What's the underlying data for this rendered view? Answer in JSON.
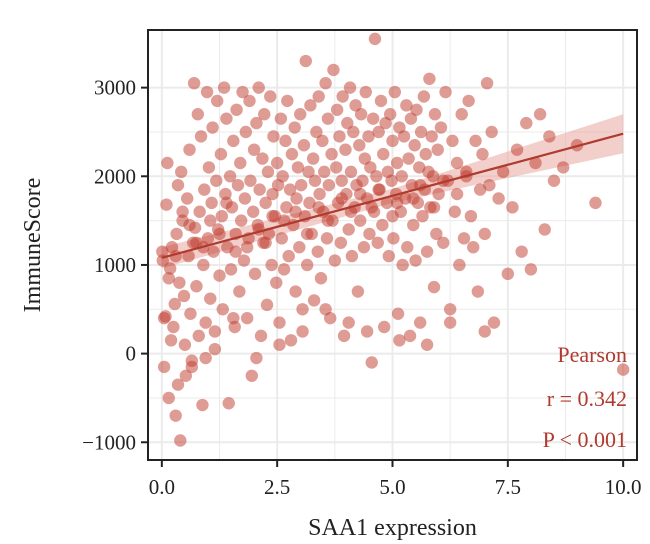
{
  "chart_data": {
    "type": "scatter",
    "title": "",
    "xlabel": "SAA1 expression",
    "ylabel": "ImmuneScore",
    "xlim": [
      -0.3,
      10.3
    ],
    "ylim": [
      -1200,
      3650
    ],
    "x_ticks": [
      0.0,
      2.5,
      5.0,
      7.5,
      10.0
    ],
    "x_tick_labels": [
      "0.0",
      "2.5",
      "5.0",
      "7.5",
      "10.0"
    ],
    "y_ticks": [
      -1000,
      0,
      1000,
      2000,
      3000
    ],
    "y_tick_labels": [
      "−1000",
      "0",
      "1000",
      "2000",
      "3000"
    ],
    "grid": true,
    "colors": {
      "point": "#c0392b",
      "line": "#b03a2e",
      "band": "#e8a7a0",
      "annotation": "#b03a2e",
      "grid": "#ebebeb"
    },
    "regression": {
      "x": [
        0.0,
        10.0
      ],
      "y": [
        1080,
        2480
      ],
      "se_band": [
        [
          0.0,
          960,
          1200
        ],
        [
          5.0,
          1700,
          1860
        ],
        [
          10.0,
          2260,
          2700
        ]
      ]
    },
    "annotations": {
      "method": "Pearson",
      "r": "r = 0.342",
      "p": "P < 0.001"
    },
    "points": [
      [
        0.01,
        1150
      ],
      [
        0.02,
        1050
      ],
      [
        0.05,
        -150
      ],
      [
        0.08,
        420
      ],
      [
        0.1,
        1680
      ],
      [
        0.12,
        2150
      ],
      [
        0.15,
        -500
      ],
      [
        0.18,
        960
      ],
      [
        0.2,
        150
      ],
      [
        0.22,
        1200
      ],
      [
        0.25,
        300
      ],
      [
        0.28,
        560
      ],
      [
        0.3,
        -700
      ],
      [
        0.32,
        1350
      ],
      [
        0.35,
        1900
      ],
      [
        0.38,
        800
      ],
      [
        0.4,
        -980
      ],
      [
        0.42,
        2050
      ],
      [
        0.45,
        1500
      ],
      [
        0.48,
        650
      ],
      [
        0.5,
        100
      ],
      [
        0.52,
        -250
      ],
      [
        0.55,
        1750
      ],
      [
        0.58,
        1100
      ],
      [
        0.6,
        2300
      ],
      [
        0.62,
        450
      ],
      [
        0.65,
        -80
      ],
      [
        0.68,
        1250
      ],
      [
        0.7,
        3050
      ],
      [
        0.72,
        1420
      ],
      [
        0.75,
        760
      ],
      [
        0.78,
        2700
      ],
      [
        0.8,
        200
      ],
      [
        0.82,
        1600
      ],
      [
        0.85,
        2450
      ],
      [
        0.88,
        -580
      ],
      [
        0.9,
        1000
      ],
      [
        0.92,
        1850
      ],
      [
        0.95,
        350
      ],
      [
        0.98,
        2950
      ],
      [
        1.0,
        1300
      ],
      [
        1.02,
        2100
      ],
      [
        1.05,
        620
      ],
      [
        1.08,
        1700
      ],
      [
        1.1,
        2550
      ],
      [
        1.12,
        1150
      ],
      [
        1.15,
        50
      ],
      [
        1.18,
        1950
      ],
      [
        1.2,
        2850
      ],
      [
        1.22,
        1400
      ],
      [
        1.25,
        880
      ],
      [
        1.28,
        2250
      ],
      [
        1.3,
        1550
      ],
      [
        1.32,
        500
      ],
      [
        1.35,
        3000
      ],
      [
        1.38,
        1800
      ],
      [
        1.4,
        2650
      ],
      [
        1.42,
        1200
      ],
      [
        1.45,
        -560
      ],
      [
        1.48,
        2000
      ],
      [
        1.5,
        950
      ],
      [
        1.52,
        1650
      ],
      [
        1.55,
        2400
      ],
      [
        1.58,
        300
      ],
      [
        1.6,
        1350
      ],
      [
        1.62,
        2750
      ],
      [
        1.65,
        1900
      ],
      [
        1.68,
        700
      ],
      [
        1.7,
        2150
      ],
      [
        1.72,
        1500
      ],
      [
        1.75,
        2950
      ],
      [
        1.78,
        1050
      ],
      [
        1.8,
        1750
      ],
      [
        1.82,
        2500
      ],
      [
        1.85,
        400
      ],
      [
        1.88,
        1300
      ],
      [
        1.9,
        2850
      ],
      [
        1.92,
        1950
      ],
      [
        1.95,
        -250
      ],
      [
        1.98,
        1600
      ],
      [
        2.0,
        2300
      ],
      [
        2.02,
        900
      ],
      [
        2.05,
        2600
      ],
      [
        2.08,
        1450
      ],
      [
        2.1,
        3000
      ],
      [
        2.12,
        1850
      ],
      [
        2.15,
        200
      ],
      [
        2.18,
        2200
      ],
      [
        2.2,
        1250
      ],
      [
        2.22,
        2700
      ],
      [
        2.25,
        1700
      ],
      [
        2.28,
        550
      ],
      [
        2.3,
        2050
      ],
      [
        2.32,
        1350
      ],
      [
        2.35,
        2900
      ],
      [
        2.38,
        1000
      ],
      [
        2.4,
        1800
      ],
      [
        2.42,
        2450
      ],
      [
        2.45,
        1550
      ],
      [
        2.48,
        800
      ],
      [
        2.5,
        2150
      ],
      [
        2.52,
        1900
      ],
      [
        2.55,
        350
      ],
      [
        2.58,
        2650
      ],
      [
        2.6,
        1300
      ],
      [
        2.62,
        2000
      ],
      [
        2.65,
        950
      ],
      [
        2.68,
        2400
      ],
      [
        2.7,
        1650
      ],
      [
        2.72,
        2850
      ],
      [
        2.75,
        1100
      ],
      [
        2.78,
        1850
      ],
      [
        2.8,
        150
      ],
      [
        2.82,
        2250
      ],
      [
        2.85,
        1450
      ],
      [
        2.88,
        2550
      ],
      [
        2.9,
        700
      ],
      [
        2.92,
        1750
      ],
      [
        2.95,
        2100
      ],
      [
        2.98,
        1200
      ],
      [
        3.0,
        2700
      ],
      [
        3.02,
        1900
      ],
      [
        3.05,
        500
      ],
      [
        3.08,
        2350
      ],
      [
        3.1,
        1550
      ],
      [
        3.12,
        3300
      ],
      [
        3.15,
        1000
      ],
      [
        3.18,
        2050
      ],
      [
        3.2,
        1700
      ],
      [
        3.22,
        2800
      ],
      [
        3.25,
        1350
      ],
      [
        3.28,
        2200
      ],
      [
        3.3,
        600
      ],
      [
        3.32,
        1950
      ],
      [
        3.35,
        2500
      ],
      [
        3.38,
        1150
      ],
      [
        3.4,
        2900
      ],
      [
        3.42,
        1800
      ],
      [
        3.45,
        850
      ],
      [
        3.48,
        2400
      ],
      [
        3.5,
        1600
      ],
      [
        3.52,
        2050
      ],
      [
        3.55,
        3050
      ],
      [
        3.58,
        1300
      ],
      [
        3.6,
        2650
      ],
      [
        3.62,
        1900
      ],
      [
        3.65,
        400
      ],
      [
        3.68,
        2250
      ],
      [
        3.7,
        1500
      ],
      [
        3.72,
        3200
      ],
      [
        3.75,
        1050
      ],
      [
        3.78,
        2100
      ],
      [
        3.8,
        2750
      ],
      [
        3.82,
        1700
      ],
      [
        3.85,
        2450
      ],
      [
        3.88,
        1250
      ],
      [
        3.9,
        1950
      ],
      [
        3.92,
        2900
      ],
      [
        3.95,
        200
      ],
      [
        3.98,
        2300
      ],
      [
        4.0,
        1800
      ],
      [
        4.02,
        2600
      ],
      [
        4.05,
        1400
      ],
      [
        4.08,
        3000
      ],
      [
        4.1,
        2050
      ],
      [
        4.12,
        1100
      ],
      [
        4.15,
        2500
      ],
      [
        4.18,
        1650
      ],
      [
        4.2,
        2800
      ],
      [
        4.22,
        1900
      ],
      [
        4.25,
        700
      ],
      [
        4.28,
        2350
      ],
      [
        4.3,
        1500
      ],
      [
        4.32,
        2700
      ],
      [
        4.35,
        1950
      ],
      [
        4.38,
        1200
      ],
      [
        4.4,
        2200
      ],
      [
        4.42,
        2950
      ],
      [
        4.45,
        1750
      ],
      [
        4.48,
        2450
      ],
      [
        4.5,
        1350
      ],
      [
        4.52,
        2100
      ],
      [
        4.55,
        -100
      ],
      [
        4.58,
        2650
      ],
      [
        4.6,
        1600
      ],
      [
        4.62,
        3550
      ],
      [
        4.65,
        2000
      ],
      [
        4.68,
        1250
      ],
      [
        4.7,
        2500
      ],
      [
        4.72,
        1850
      ],
      [
        4.75,
        2850
      ],
      [
        4.78,
        1450
      ],
      [
        4.8,
        2250
      ],
      [
        4.82,
        300
      ],
      [
        4.85,
        2600
      ],
      [
        4.88,
        1700
      ],
      [
        4.9,
        2050
      ],
      [
        4.92,
        1100
      ],
      [
        4.95,
        2700
      ],
      [
        4.98,
        1950
      ],
      [
        5.0,
        2400
      ],
      [
        5.02,
        1300
      ],
      [
        5.05,
        2950
      ],
      [
        5.08,
        1800
      ],
      [
        5.1,
        2150
      ],
      [
        5.12,
        450
      ],
      [
        5.15,
        2550
      ],
      [
        5.18,
        1600
      ],
      [
        5.2,
        2000
      ],
      [
        5.22,
        1000
      ],
      [
        5.25,
        2450
      ],
      [
        5.28,
        1750
      ],
      [
        5.3,
        2800
      ],
      [
        5.32,
        1200
      ],
      [
        5.35,
        2200
      ],
      [
        5.38,
        200
      ],
      [
        5.4,
        2650
      ],
      [
        5.42,
        1900
      ],
      [
        5.45,
        1450
      ],
      [
        5.48,
        2350
      ],
      [
        5.5,
        1050
      ],
      [
        5.52,
        2750
      ],
      [
        5.55,
        1700
      ],
      [
        5.58,
        2100
      ],
      [
        5.6,
        350
      ],
      [
        5.62,
        2500
      ],
      [
        5.65,
        1550
      ],
      [
        5.68,
        2900
      ],
      [
        5.7,
        1850
      ],
      [
        5.72,
        2250
      ],
      [
        5.75,
        1150
      ],
      [
        5.78,
        2050
      ],
      [
        5.8,
        3100
      ],
      [
        5.82,
        1650
      ],
      [
        5.85,
        2450
      ],
      [
        5.88,
        2000
      ],
      [
        5.9,
        750
      ],
      [
        5.92,
        2700
      ],
      [
        5.95,
        1350
      ],
      [
        5.98,
        2300
      ],
      [
        6.0,
        1800
      ],
      [
        6.05,
        2550
      ],
      [
        6.1,
        1250
      ],
      [
        6.15,
        2950
      ],
      [
        6.2,
        1950
      ],
      [
        6.25,
        500
      ],
      [
        6.3,
        2400
      ],
      [
        6.35,
        1600
      ],
      [
        6.4,
        2150
      ],
      [
        6.45,
        1000
      ],
      [
        6.5,
        2700
      ],
      [
        6.55,
        1300
      ],
      [
        6.6,
        2050
      ],
      [
        6.65,
        2850
      ],
      [
        6.7,
        1550
      ],
      [
        6.75,
        1200
      ],
      [
        6.8,
        2400
      ],
      [
        6.85,
        700
      ],
      [
        6.9,
        1850
      ],
      [
        6.95,
        2250
      ],
      [
        7.0,
        1350
      ],
      [
        7.05,
        3050
      ],
      [
        7.1,
        1900
      ],
      [
        7.15,
        2500
      ],
      [
        7.2,
        350
      ],
      [
        7.3,
        1750
      ],
      [
        7.4,
        2050
      ],
      [
        7.5,
        900
      ],
      [
        7.6,
        1650
      ],
      [
        7.7,
        2300
      ],
      [
        7.8,
        1150
      ],
      [
        7.9,
        2600
      ],
      [
        8.0,
        950
      ],
      [
        8.1,
        2150
      ],
      [
        8.2,
        2700
      ],
      [
        8.3,
        1400
      ],
      [
        8.4,
        2450
      ],
      [
        8.5,
        1950
      ],
      [
        8.7,
        2100
      ],
      [
        9.0,
        2350
      ],
      [
        9.4,
        1700
      ],
      [
        10.0,
        -180
      ],
      [
        0.3,
        1100
      ],
      [
        0.6,
        1450
      ],
      [
        0.9,
        1200
      ],
      [
        1.25,
        1350
      ],
      [
        1.6,
        1150
      ],
      [
        2.1,
        1400
      ],
      [
        2.4,
        1550
      ],
      [
        2.9,
        1600
      ],
      [
        3.4,
        1650
      ],
      [
        3.9,
        1750
      ],
      [
        4.3,
        1800
      ],
      [
        4.7,
        1850
      ],
      [
        5.1,
        1700
      ],
      [
        5.6,
        1900
      ],
      [
        6.1,
        1950
      ],
      [
        6.6,
        2000
      ],
      [
        0.15,
        850
      ],
      [
        0.45,
        1600
      ],
      [
        0.75,
        1250
      ],
      [
        1.05,
        1500
      ],
      [
        1.4,
        1700
      ],
      [
        1.85,
        1200
      ],
      [
        2.25,
        1250
      ],
      [
        2.65,
        1500
      ],
      [
        3.15,
        1350
      ],
      [
        3.6,
        1500
      ],
      [
        4.1,
        1600
      ],
      [
        4.55,
        1650
      ],
      [
        5.0,
        1550
      ],
      [
        5.45,
        1750
      ],
      [
        5.9,
        1650
      ],
      [
        6.4,
        1800
      ],
      [
        0.05,
        400
      ],
      [
        0.35,
        -350
      ],
      [
        0.65,
        -150
      ],
      [
        0.95,
        -50
      ],
      [
        1.15,
        250
      ],
      [
        1.55,
        400
      ],
      [
        2.05,
        -50
      ],
      [
        2.55,
        100
      ],
      [
        3.05,
        250
      ],
      [
        3.55,
        500
      ],
      [
        4.05,
        350
      ],
      [
        4.45,
        250
      ],
      [
        5.15,
        150
      ],
      [
        5.75,
        100
      ],
      [
        6.25,
        350
      ],
      [
        7.0,
        250
      ]
    ]
  }
}
